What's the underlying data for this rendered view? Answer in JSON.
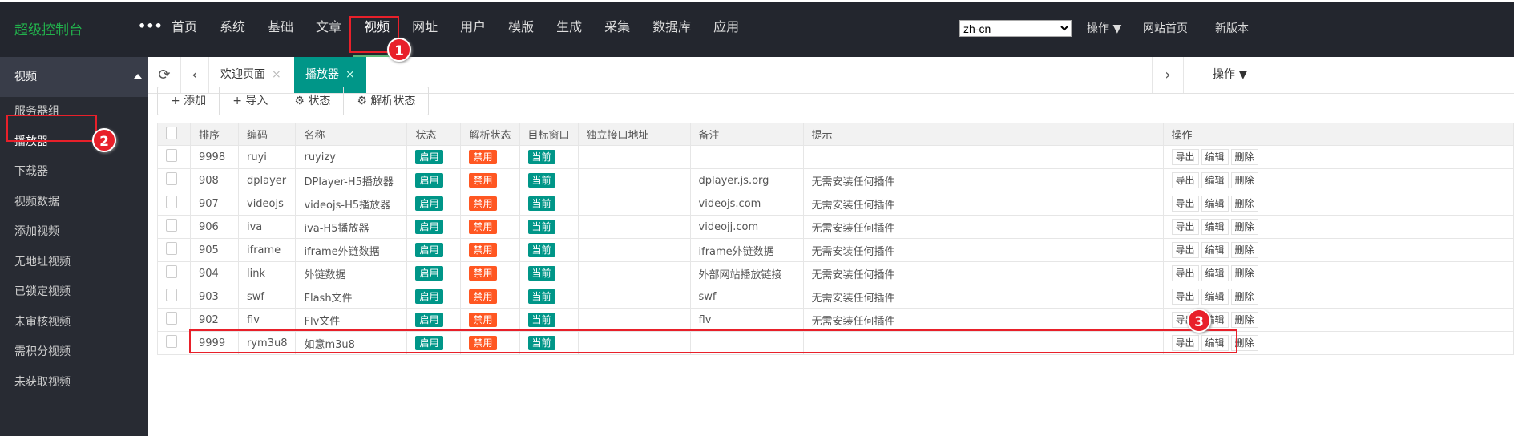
{
  "header": {
    "logo": "超级控制台",
    "more": "•••",
    "nav": [
      "首页",
      "系统",
      "基础",
      "文章",
      "视频",
      "网址",
      "用户",
      "模版",
      "生成",
      "采集",
      "数据库",
      "应用"
    ],
    "active_nav": 4,
    "language": "zh-cn",
    "ops": "操作 ▼",
    "site_home": "网站首页",
    "new_version": "新版本"
  },
  "sidebar": {
    "section": "视频",
    "items": [
      "服务器组",
      "播放器",
      "下载器",
      "视频数据",
      "添加视频",
      "无地址视频",
      "已锁定视频",
      "未审核视频",
      "需积分视频",
      "未获取视频"
    ],
    "active": 1
  },
  "tabs": {
    "items": [
      "欢迎页面",
      "播放器"
    ],
    "close": "×",
    "ops": "操作 ▼"
  },
  "toolbar": {
    "add": "+ 添加",
    "import": "+ 导入",
    "status": "⚙ 状态",
    "parse_status": "⚙ 解析状态"
  },
  "table": {
    "headers": [
      "排序",
      "编码",
      "名称",
      "状态",
      "解析状态",
      "目标窗口",
      "独立接口地址",
      "备注",
      "提示",
      "操作"
    ],
    "rows": [
      [
        "9998",
        "ruyi",
        "ruyizy",
        "启用",
        "禁用",
        "当前",
        "",
        "",
        ""
      ],
      [
        "908",
        "dplayer",
        "DPlayer-H5播放器",
        "启用",
        "禁用",
        "当前",
        "",
        "dplayer.js.org",
        "无需安装任何插件"
      ],
      [
        "907",
        "videojs",
        "videojs-H5播放器",
        "启用",
        "禁用",
        "当前",
        "",
        "videojs.com",
        "无需安装任何插件"
      ],
      [
        "906",
        "iva",
        "iva-H5播放器",
        "启用",
        "禁用",
        "当前",
        "",
        "videojj.com",
        "无需安装任何插件"
      ],
      [
        "905",
        "iframe",
        "iframe外链数据",
        "启用",
        "禁用",
        "当前",
        "",
        "iframe外链数据",
        "无需安装任何插件"
      ],
      [
        "904",
        "link",
        "外链数据",
        "启用",
        "禁用",
        "当前",
        "",
        "外部网站播放链接",
        "无需安装任何插件"
      ],
      [
        "903",
        "swf",
        "Flash文件",
        "启用",
        "禁用",
        "当前",
        "",
        "swf",
        "无需安装任何插件"
      ],
      [
        "902",
        "flv",
        "Flv文件",
        "启用",
        "禁用",
        "当前",
        "",
        "flv",
        "无需安装任何插件"
      ],
      [
        "9999",
        "rym3u8",
        "如意m3u8",
        "启用",
        "禁用",
        "当前",
        "",
        "",
        ""
      ]
    ],
    "actions": [
      "导出",
      "编辑",
      "删除"
    ]
  },
  "annotations": [
    "1",
    "2",
    "3"
  ],
  "colors": {
    "accent": "#009688",
    "danger": "#ff5722",
    "annotation": "#e8202a"
  }
}
